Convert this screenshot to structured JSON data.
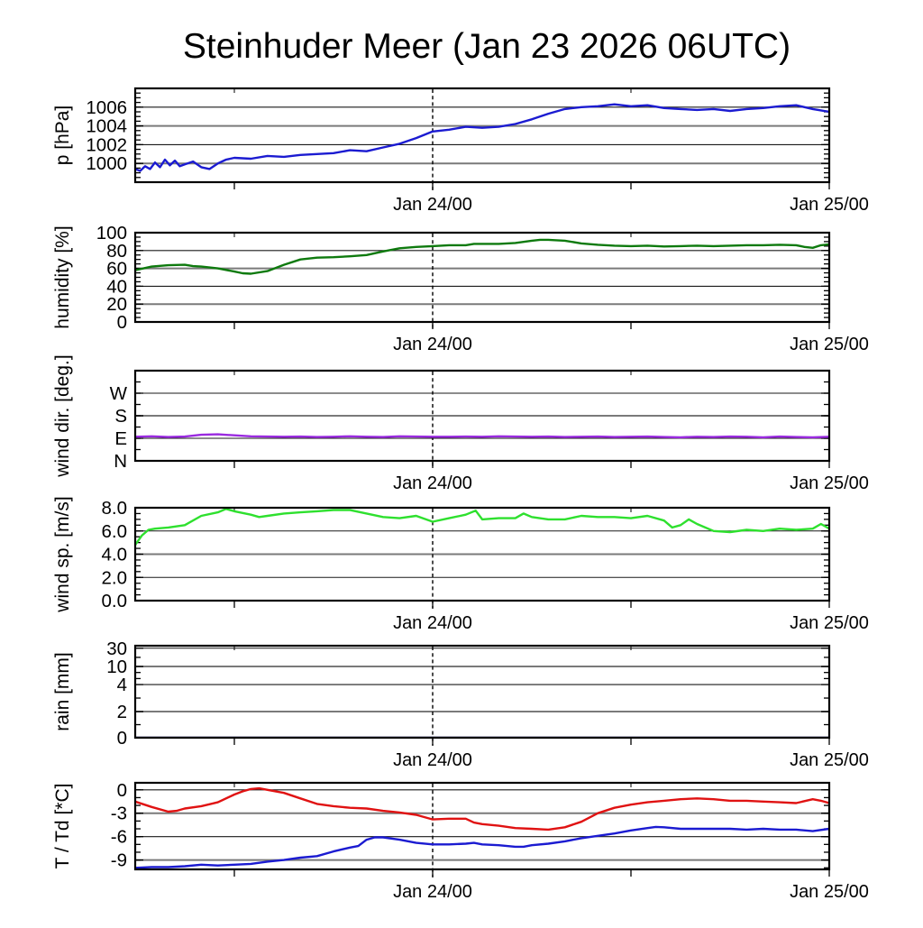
{
  "title": "Steinhuder Meer (Jan 23 2026 06UTC)",
  "x_axis": {
    "start_label": "Jan 23 06UTC",
    "hours_total": 42,
    "marker_hour": 18,
    "ticks": [
      {
        "t": 6,
        "label": ""
      },
      {
        "t": 18,
        "label": "Jan 24/00"
      },
      {
        "t": 30,
        "label": ""
      },
      {
        "t": 42,
        "label": "Jan 25/00"
      }
    ]
  },
  "chart_data": [
    {
      "type": "line",
      "id": "pressure",
      "ylabel": "p [hPa]",
      "ylim": [
        998,
        1008
      ],
      "yticks": [
        {
          "v": 1000,
          "label": "1000"
        },
        {
          "v": 1002,
          "label": "1002"
        },
        {
          "v": 1004,
          "label": "1004"
        },
        {
          "v": 1006,
          "label": "1006"
        }
      ],
      "grid": true,
      "series": [
        {
          "name": "pressure",
          "color": "#1b1bd1",
          "t": [
            0,
            0.3,
            0.6,
            0.9,
            1.2,
            1.5,
            1.8,
            2.1,
            2.4,
            2.7,
            3,
            3.5,
            4,
            4.5,
            5,
            5.5,
            6,
            7,
            8,
            9,
            10,
            11,
            12,
            13,
            14,
            15,
            16,
            17,
            18,
            19,
            20,
            21,
            22,
            23,
            24,
            25,
            26,
            27,
            28,
            29,
            30,
            31,
            32,
            33,
            34,
            35,
            36,
            37,
            38,
            39,
            40,
            41,
            42
          ],
          "v": [
            999.4,
            999.2,
            999.7,
            999.4,
            1000.1,
            999.6,
            1000.4,
            999.8,
            1000.3,
            999.7,
            999.9,
            1000.2,
            999.6,
            999.4,
            1000.0,
            1000.4,
            1000.6,
            1000.5,
            1000.8,
            1000.7,
            1000.9,
            1001.0,
            1001.1,
            1001.4,
            1001.3,
            1001.7,
            1002.1,
            1002.7,
            1003.4,
            1003.6,
            1003.9,
            1003.8,
            1003.9,
            1004.2,
            1004.7,
            1005.3,
            1005.8,
            1006.0,
            1006.1,
            1006.3,
            1006.1,
            1006.2,
            1005.9,
            1005.8,
            1005.7,
            1005.8,
            1005.6,
            1005.8,
            1005.9,
            1006.1,
            1006.2,
            1005.8,
            1005.5
          ]
        }
      ]
    },
    {
      "type": "line",
      "id": "humidity",
      "ylabel": "humidity [%]",
      "ylim": [
        0,
        100
      ],
      "yticks": [
        {
          "v": 0,
          "label": "0"
        },
        {
          "v": 20,
          "label": "20"
        },
        {
          "v": 40,
          "label": "40"
        },
        {
          "v": 60,
          "label": "60"
        },
        {
          "v": 80,
          "label": "80"
        },
        {
          "v": 100,
          "label": "100"
        }
      ],
      "grid": true,
      "series": [
        {
          "name": "humidity",
          "color": "#0e7a0e",
          "t": [
            0,
            1,
            2,
            3,
            3.5,
            4,
            5,
            6,
            6.5,
            7,
            8,
            9,
            10,
            11,
            12,
            13,
            14,
            15,
            16,
            17,
            18,
            19,
            20,
            20.5,
            21,
            22,
            23,
            24,
            24.5,
            25,
            26,
            27,
            28,
            29,
            30,
            31,
            32,
            33,
            34,
            35,
            36,
            37,
            38,
            39,
            40,
            40.5,
            41,
            41.5,
            42
          ],
          "v": [
            58,
            62,
            63.5,
            64,
            62.5,
            62,
            60,
            56.5,
            54.5,
            54,
            57,
            64,
            70,
            72,
            72.5,
            73.5,
            75,
            79,
            82.5,
            84,
            85,
            86,
            86,
            87.5,
            87.5,
            87.5,
            88.5,
            91,
            92,
            92,
            91,
            88,
            86.5,
            85.5,
            85,
            85.5,
            84.5,
            85,
            85.5,
            85,
            85.5,
            86,
            86,
            86.5,
            86,
            84,
            83,
            86,
            87
          ]
        }
      ]
    },
    {
      "type": "line",
      "id": "winddir",
      "ylabel": "wind dir. [deg.]",
      "ylim": [
        0,
        360
      ],
      "yticks": [
        {
          "v": 0,
          "label": "N"
        },
        {
          "v": 90,
          "label": "E"
        },
        {
          "v": 180,
          "label": "S"
        },
        {
          "v": 270,
          "label": "W"
        }
      ],
      "grid": true,
      "series": [
        {
          "name": "wind-direction",
          "color": "#9a2ae0",
          "t": [
            0,
            1,
            2,
            3,
            4,
            5,
            6,
            7,
            8,
            9,
            10,
            11,
            12,
            13,
            14,
            15,
            16,
            17,
            18,
            19,
            20,
            21,
            22,
            23,
            24,
            25,
            26,
            27,
            28,
            29,
            30,
            31,
            32,
            33,
            34,
            35,
            36,
            37,
            38,
            39,
            40,
            41,
            42
          ],
          "v": [
            96,
            98,
            95,
            97,
            104,
            106,
            102,
            98,
            97,
            96,
            97,
            95,
            96,
            98,
            96,
            95,
            98,
            97,
            96,
            96,
            97,
            96,
            98,
            97,
            96,
            97,
            95,
            96,
            97,
            95,
            96,
            97,
            95,
            94,
            96,
            95,
            97,
            96,
            94,
            97,
            95,
            94,
            96
          ]
        }
      ]
    },
    {
      "type": "line",
      "id": "windspeed",
      "ylabel": "wind sp. [m/s]",
      "ylim": [
        0,
        8
      ],
      "yticks": [
        {
          "v": 0,
          "label": "0.0"
        },
        {
          "v": 2,
          "label": "2.0"
        },
        {
          "v": 4,
          "label": "4.0"
        },
        {
          "v": 6,
          "label": "6.0"
        },
        {
          "v": 8,
          "label": "8.0"
        }
      ],
      "grid": true,
      "series": [
        {
          "name": "wind-speed",
          "color": "#2ee02e",
          "t": [
            0,
            0.4,
            0.8,
            1.2,
            2,
            3,
            4,
            5,
            5.5,
            6,
            7,
            7.5,
            8,
            9,
            10,
            11,
            12,
            13,
            14,
            15,
            16,
            17,
            18,
            19,
            20,
            20.6,
            21,
            22,
            23,
            23.5,
            24,
            25,
            26,
            27,
            28,
            29,
            30,
            31,
            32,
            32.5,
            33,
            33.5,
            34,
            35,
            36,
            37,
            38,
            39,
            40,
            41,
            41.5,
            42
          ],
          "v": [
            4.8,
            5.6,
            6.1,
            6.2,
            6.3,
            6.5,
            7.3,
            7.6,
            7.9,
            7.7,
            7.4,
            7.2,
            7.3,
            7.5,
            7.6,
            7.7,
            7.8,
            7.8,
            7.5,
            7.2,
            7.1,
            7.3,
            6.8,
            7.1,
            7.4,
            7.75,
            7.0,
            7.1,
            7.1,
            7.5,
            7.2,
            7.0,
            7.0,
            7.3,
            7.2,
            7.2,
            7.1,
            7.3,
            6.9,
            6.3,
            6.5,
            7.0,
            6.6,
            6.0,
            5.9,
            6.1,
            6.0,
            6.2,
            6.1,
            6.2,
            6.6,
            6.2
          ]
        }
      ]
    },
    {
      "type": "line",
      "id": "rain",
      "ylabel": "rain [mm]",
      "scale": "nonlinear",
      "ylim": [
        0,
        45
      ],
      "yticks": [
        {
          "v": 0,
          "label": "0"
        },
        {
          "v": 2,
          "label": "2"
        },
        {
          "v": 4,
          "label": "4"
        },
        {
          "v": 10,
          "label": "10"
        },
        {
          "v": 30,
          "label": "30"
        }
      ],
      "grid": true,
      "series": [
        {
          "name": "rain",
          "color": "#00004d",
          "t": [
            0,
            42
          ],
          "v": [
            0,
            0
          ]
        }
      ]
    },
    {
      "type": "line",
      "id": "temperature",
      "ylabel": "T / Td [*C]",
      "ylim": [
        -10.2,
        0.9
      ],
      "yticks": [
        {
          "v": 0,
          "label": "0"
        },
        {
          "v": -3,
          "label": "-3"
        },
        {
          "v": -6,
          "label": "-6"
        },
        {
          "v": -9,
          "label": "-9"
        }
      ],
      "grid": true,
      "series": [
        {
          "name": "temperature",
          "color": "#e01212",
          "t": [
            0,
            1,
            2,
            2.5,
            3,
            4,
            5,
            6,
            6.5,
            7,
            7.5,
            8,
            9,
            10,
            11,
            12,
            13,
            14,
            15,
            16,
            17,
            18,
            19,
            20,
            20.5,
            21,
            22,
            23,
            24,
            25,
            26,
            27,
            28,
            29,
            30,
            31,
            32,
            33,
            34,
            35,
            36,
            37,
            38,
            39,
            40,
            41,
            41.5,
            42
          ],
          "v": [
            -1.5,
            -2.2,
            -2.8,
            -2.7,
            -2.4,
            -2.1,
            -1.6,
            -0.6,
            -0.2,
            0.1,
            0.2,
            0.0,
            -0.4,
            -1.1,
            -1.8,
            -2.1,
            -2.3,
            -2.4,
            -2.7,
            -2.9,
            -3.2,
            -3.8,
            -3.7,
            -3.7,
            -4.2,
            -4.4,
            -4.6,
            -4.9,
            -5.0,
            -5.1,
            -4.8,
            -4.1,
            -3.0,
            -2.3,
            -1.9,
            -1.6,
            -1.4,
            -1.2,
            -1.1,
            -1.2,
            -1.4,
            -1.4,
            -1.5,
            -1.6,
            -1.7,
            -1.2,
            -1.4,
            -1.7
          ]
        },
        {
          "name": "dewpoint",
          "color": "#1b1bd1",
          "t": [
            0,
            1,
            2,
            3,
            4,
            5,
            6,
            7,
            8,
            9,
            10,
            11,
            12,
            13,
            13.5,
            14,
            14.5,
            15,
            16,
            17,
            18,
            19,
            20,
            20.5,
            21,
            22,
            23,
            23.5,
            24,
            25,
            26,
            27,
            28,
            29,
            30,
            31,
            31.5,
            32,
            33,
            34,
            35,
            36,
            37,
            38,
            39,
            40,
            41,
            42
          ],
          "v": [
            -10.0,
            -9.9,
            -9.9,
            -9.8,
            -9.6,
            -9.7,
            -9.6,
            -9.5,
            -9.2,
            -9.0,
            -8.7,
            -8.5,
            -7.9,
            -7.4,
            -7.2,
            -6.4,
            -6.1,
            -6.1,
            -6.4,
            -6.8,
            -7.0,
            -7.0,
            -6.9,
            -6.8,
            -7.0,
            -7.1,
            -7.3,
            -7.3,
            -7.1,
            -6.9,
            -6.6,
            -6.2,
            -5.9,
            -5.6,
            -5.2,
            -4.9,
            -4.75,
            -4.8,
            -5.0,
            -5.0,
            -5.0,
            -5.0,
            -5.1,
            -5.0,
            -5.1,
            -5.1,
            -5.3,
            -5.0
          ]
        }
      ]
    }
  ]
}
